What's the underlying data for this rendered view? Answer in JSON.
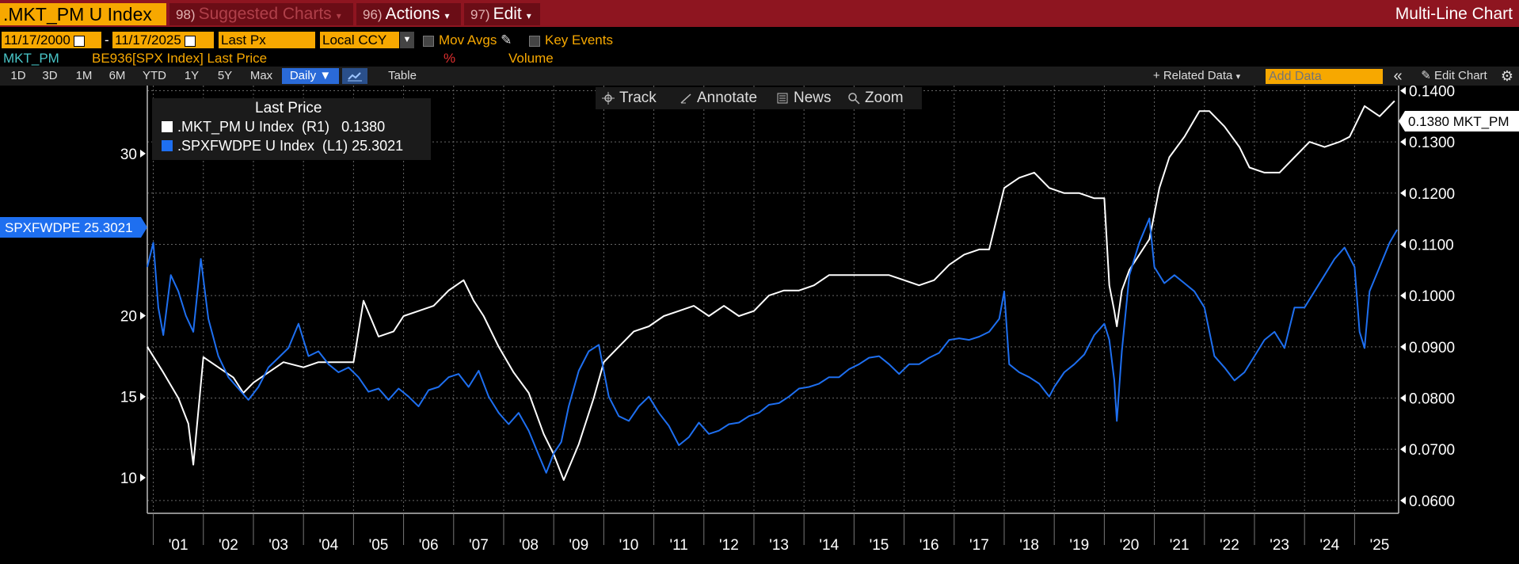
{
  "header": {
    "ticker": ".MKT_PM U Index",
    "suggested_num": "98)",
    "suggested": "Suggested Charts",
    "actions_num": "96)",
    "actions": "Actions",
    "edit_num": "97)",
    "edit": "Edit",
    "chart_type": "Multi-Line Chart"
  },
  "controls": {
    "start_date": "11/17/2000",
    "dash": "-",
    "end_date": "11/17/2025",
    "field": "Last Px",
    "currency": "Local CCY",
    "mov_avgs": "Mov Avgs",
    "key_events": "Key Events",
    "pct": "%",
    "volume": "Volume"
  },
  "series_row": {
    "name1": "MKT_PM",
    "name2": "BE936[SPX Index] Last Price"
  },
  "ranges": [
    "1D",
    "3D",
    "1M",
    "6M",
    "YTD",
    "1Y",
    "5Y",
    "Max"
  ],
  "frequency": "Daily ▼",
  "table_label": "Table",
  "related_data": "+ Related Data",
  "add_data_placeholder": "Add Data",
  "collapse": "«",
  "edit_chart": "Edit Chart",
  "tools": {
    "track": "Track",
    "annotate": "Annotate",
    "news": "News",
    "zoom": "Zoom"
  },
  "legend": {
    "title": "Last Price",
    "rows": [
      {
        "label": ".MKT_PM U Index  (R1)",
        "value": "0.1380",
        "color": "#ffffff"
      },
      {
        "label": ".SPXFWDPE U Index  (L1)",
        "value": "25.3021",
        "color": "#1e6ff0"
      }
    ]
  },
  "tags": {
    "left": "SPXFWDPE 25.3021",
    "right": "0.1380 MKT_PM"
  },
  "chart_data": {
    "type": "line",
    "title": "Multi-Line Chart",
    "x_range": [
      2000.88,
      2025.88
    ],
    "x_tick_labels": [
      "'01",
      "'02",
      "'03",
      "'04",
      "'05",
      "'06",
      "'07",
      "'08",
      "'09",
      "'10",
      "'11",
      "'12",
      "'13",
      "'14",
      "'15",
      "'16",
      "'17",
      "'18",
      "'19",
      "'20",
      "'21",
      "'22",
      "'23",
      "'24",
      "'25"
    ],
    "left_axis": {
      "ylim": [
        7.8,
        34.2
      ],
      "ticks": [
        "10",
        "15",
        "20",
        "30"
      ],
      "tick_values": [
        10,
        15,
        20,
        30
      ]
    },
    "right_axis": {
      "ylim": [
        0.0575,
        0.141
      ],
      "ticks": [
        "0.0600",
        "0.0700",
        "0.0800",
        "0.0900",
        "0.1000",
        "0.1100",
        "0.1200",
        "0.1300",
        "0.1400"
      ],
      "tick_values": [
        0.06,
        0.07,
        0.08,
        0.09,
        0.1,
        0.11,
        0.12,
        0.13,
        0.14
      ]
    },
    "grid": true,
    "series": [
      {
        "name": ".MKT_PM U Index (R1)",
        "axis": "right",
        "color": "#ffffff",
        "x": [
          2000.88,
          2001.2,
          2001.5,
          2001.7,
          2001.8,
          2002.0,
          2002.3,
          2002.6,
          2002.8,
          2003.0,
          2003.3,
          2003.6,
          2004.0,
          2004.3,
          2004.6,
          2005.0,
          2005.2,
          2005.5,
          2005.8,
          2006.0,
          2006.3,
          2006.6,
          2006.9,
          2007.2,
          2007.4,
          2007.6,
          2007.9,
          2008.2,
          2008.5,
          2008.8,
          2009.0,
          2009.2,
          2009.5,
          2009.8,
          2010.0,
          2010.3,
          2010.6,
          2010.9,
          2011.2,
          2011.5,
          2011.8,
          2012.1,
          2012.4,
          2012.7,
          2013.0,
          2013.3,
          2013.6,
          2013.9,
          2014.2,
          2014.5,
          2014.8,
          2015.1,
          2015.4,
          2015.7,
          2016.0,
          2016.3,
          2016.6,
          2016.9,
          2017.2,
          2017.5,
          2017.7,
          2018.0,
          2018.3,
          2018.6,
          2018.9,
          2019.2,
          2019.5,
          2019.8,
          2020.0,
          2020.1,
          2020.2,
          2020.25,
          2020.35,
          2020.5,
          2020.7,
          2020.9,
          2021.1,
          2021.3,
          2021.6,
          2021.9,
          2022.1,
          2022.4,
          2022.7,
          2022.9,
          2023.2,
          2023.5,
          2023.8,
          2024.1,
          2024.4,
          2024.7,
          2024.9,
          2025.2,
          2025.5,
          2025.8
        ],
        "y": [
          0.09,
          0.085,
          0.08,
          0.075,
          0.067,
          0.088,
          0.086,
          0.084,
          0.081,
          0.083,
          0.085,
          0.087,
          0.086,
          0.087,
          0.087,
          0.087,
          0.099,
          0.092,
          0.093,
          0.096,
          0.097,
          0.098,
          0.101,
          0.103,
          0.099,
          0.096,
          0.09,
          0.085,
          0.081,
          0.073,
          0.069,
          0.064,
          0.071,
          0.08,
          0.087,
          0.09,
          0.093,
          0.094,
          0.096,
          0.097,
          0.098,
          0.096,
          0.098,
          0.096,
          0.097,
          0.1,
          0.101,
          0.101,
          0.102,
          0.104,
          0.104,
          0.104,
          0.104,
          0.104,
          0.103,
          0.102,
          0.103,
          0.106,
          0.108,
          0.109,
          0.109,
          0.121,
          0.123,
          0.124,
          0.121,
          0.12,
          0.12,
          0.119,
          0.119,
          0.102,
          0.097,
          0.094,
          0.101,
          0.105,
          0.108,
          0.111,
          0.121,
          0.127,
          0.131,
          0.136,
          0.136,
          0.133,
          0.129,
          0.125,
          0.124,
          0.124,
          0.127,
          0.13,
          0.129,
          0.13,
          0.131,
          0.137,
          0.135,
          0.138
        ]
      },
      {
        "name": ".SPXFWDPE U Index (L1)",
        "axis": "left",
        "color": "#1e6ff0",
        "x": [
          2000.88,
          2001.0,
          2001.1,
          2001.2,
          2001.35,
          2001.5,
          2001.65,
          2001.8,
          2001.95,
          2002.1,
          2002.3,
          2002.5,
          2002.7,
          2002.9,
          2003.1,
          2003.3,
          2003.5,
          2003.7,
          2003.9,
          2004.1,
          2004.3,
          2004.5,
          2004.7,
          2004.9,
          2005.1,
          2005.3,
          2005.5,
          2005.7,
          2005.9,
          2006.1,
          2006.3,
          2006.5,
          2006.7,
          2006.9,
          2007.1,
          2007.3,
          2007.5,
          2007.7,
          2007.9,
          2008.1,
          2008.3,
          2008.5,
          2008.7,
          2008.85,
          2009.0,
          2009.15,
          2009.3,
          2009.5,
          2009.7,
          2009.9,
          2010.1,
          2010.3,
          2010.5,
          2010.7,
          2010.9,
          2011.1,
          2011.3,
          2011.5,
          2011.7,
          2011.9,
          2012.1,
          2012.3,
          2012.5,
          2012.7,
          2012.9,
          2013.1,
          2013.3,
          2013.5,
          2013.7,
          2013.9,
          2014.1,
          2014.3,
          2014.5,
          2014.7,
          2014.9,
          2015.1,
          2015.3,
          2015.5,
          2015.7,
          2015.9,
          2016.1,
          2016.3,
          2016.5,
          2016.7,
          2016.9,
          2017.1,
          2017.3,
          2017.5,
          2017.7,
          2017.9,
          2018.0,
          2018.1,
          2018.3,
          2018.5,
          2018.7,
          2018.9,
          2019.0,
          2019.2,
          2019.4,
          2019.6,
          2019.8,
          2020.0,
          2020.1,
          2020.2,
          2020.25,
          2020.35,
          2020.5,
          2020.7,
          2020.9,
          2021.0,
          2021.2,
          2021.4,
          2021.6,
          2021.8,
          2022.0,
          2022.2,
          2022.4,
          2022.6,
          2022.8,
          2023.0,
          2023.2,
          2023.4,
          2023.6,
          2023.8,
          2024.0,
          2024.2,
          2024.4,
          2024.6,
          2024.8,
          2025.0,
          2025.1,
          2025.2,
          2025.3,
          2025.5,
          2025.7,
          2025.85
        ],
        "y": [
          23.0,
          24.5,
          20.5,
          18.8,
          22.5,
          21.5,
          20.0,
          19.0,
          23.5,
          19.8,
          17.5,
          16.2,
          15.5,
          14.8,
          15.6,
          16.8,
          17.4,
          18.0,
          19.5,
          17.5,
          17.8,
          17.0,
          16.5,
          16.8,
          16.2,
          15.3,
          15.5,
          14.8,
          15.5,
          15.0,
          14.4,
          15.4,
          15.6,
          16.2,
          16.4,
          15.6,
          16.6,
          15.0,
          14.0,
          13.3,
          14.0,
          12.9,
          11.4,
          10.3,
          11.5,
          12.2,
          14.4,
          16.6,
          17.8,
          18.2,
          15.0,
          13.8,
          13.5,
          14.4,
          15.0,
          14.0,
          13.2,
          12.0,
          12.5,
          13.4,
          12.7,
          12.9,
          13.3,
          13.4,
          13.8,
          14.0,
          14.5,
          14.6,
          15.0,
          15.5,
          15.6,
          15.8,
          16.2,
          16.2,
          16.7,
          17.0,
          17.4,
          17.5,
          17.0,
          16.4,
          17.0,
          17.0,
          17.4,
          17.7,
          18.5,
          18.6,
          18.5,
          18.7,
          19.0,
          19.8,
          21.5,
          17.0,
          16.5,
          16.2,
          15.8,
          15.0,
          15.6,
          16.5,
          17.0,
          17.6,
          18.8,
          19.5,
          18.5,
          16.0,
          13.5,
          17.8,
          22.5,
          24.5,
          26.0,
          23.0,
          22.0,
          22.5,
          22.0,
          21.5,
          20.5,
          17.5,
          16.8,
          16.0,
          16.5,
          17.5,
          18.5,
          19.0,
          18.0,
          20.5,
          20.5,
          21.5,
          22.5,
          23.5,
          24.2,
          23.0,
          19.0,
          18.0,
          21.5,
          23.0,
          24.5,
          25.3
        ]
      }
    ]
  }
}
